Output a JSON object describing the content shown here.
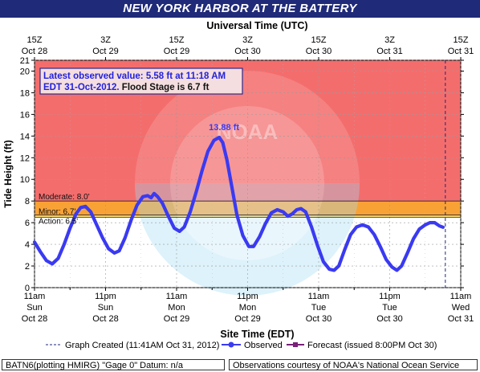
{
  "page": {
    "title": "NEW YORK HARBOR AT THE BATTERY",
    "station_info": "BATN6(plotting HMIRG) \"Gage 0\" Datum: n/a",
    "credit": "Observations courtesy of NOAA's National Ocean Service"
  },
  "colors": {
    "title_bg": "#1f2a78",
    "major": "#f46d6d",
    "moderate": "#f8a236",
    "minor": "#fcdc72",
    "action": "#f5f59a",
    "observed": "#3a3af2",
    "forecast": "#7a1f7a"
  },
  "chart_data": {
    "type": "line",
    "ylabel": "Tide Height (ft)",
    "xlabel": "Site Time (EDT)",
    "top_axis_label": "Universal Time (UTC)",
    "ylim": [
      0,
      21
    ],
    "yticks": [
      0,
      2,
      4,
      6,
      8,
      10,
      12,
      14,
      16,
      18,
      20,
      21
    ],
    "x_range_hours": [
      0,
      72
    ],
    "bottom_ticks": [
      {
        "h": 0,
        "l1": "11am",
        "l2": "Sun",
        "l3": "Oct 28"
      },
      {
        "h": 12,
        "l1": "11pm",
        "l2": "Sun",
        "l3": "Oct 28"
      },
      {
        "h": 24,
        "l1": "11am",
        "l2": "Mon",
        "l3": "Oct 29"
      },
      {
        "h": 36,
        "l1": "11pm",
        "l2": "Mon",
        "l3": "Oct 29"
      },
      {
        "h": 48,
        "l1": "11am",
        "l2": "Tue",
        "l3": "Oct 30"
      },
      {
        "h": 60,
        "l1": "11pm",
        "l2": "Tue",
        "l3": "Oct 30"
      },
      {
        "h": 72,
        "l1": "11am",
        "l2": "Wed",
        "l3": "Oct 31"
      }
    ],
    "top_ticks": [
      {
        "h": 0,
        "l1": "15Z",
        "l2": "Oct 28"
      },
      {
        "h": 12,
        "l1": "3Z",
        "l2": "Oct 29"
      },
      {
        "h": 24,
        "l1": "15Z",
        "l2": "Oct 29"
      },
      {
        "h": 36,
        "l1": "3Z",
        "l2": "Oct 30"
      },
      {
        "h": 48,
        "l1": "15Z",
        "l2": "Oct 30"
      },
      {
        "h": 60,
        "l1": "3Z",
        "l2": "Oct 31"
      },
      {
        "h": 72,
        "l1": "15Z",
        "l2": "Oct 31"
      }
    ],
    "bands": [
      {
        "label": "Moderate:",
        "value_label": "8.0'",
        "from": 8.0,
        "to": 21,
        "color": "#f46d6d"
      },
      {
        "label": "Minor:",
        "value_label": "6.7'",
        "from": 6.7,
        "to": 8.0,
        "color": "#f8a236"
      },
      {
        "label": "Action:",
        "value_label": "6.5'",
        "from": 6.5,
        "to": 6.7,
        "color": "#fcdc72"
      }
    ],
    "stage_lines": [
      {
        "label": "Moderate:",
        "value_label": "8.0'",
        "value": 8.0
      },
      {
        "label": "Minor:",
        "value_label": "6.7'",
        "value": 6.7
      },
      {
        "label": "Action:",
        "value_label": "6.5'",
        "value": 6.5
      }
    ],
    "peak_label": {
      "text": "13.88 ft",
      "h": 31.2,
      "value": 13.88
    },
    "latest_box": {
      "line1": "Latest observed value: 5.58 ft at 11:18 AM",
      "line2_a": "EDT 31-Oct-2012.",
      "line2_b": "Flood Stage is 6.7 ft"
    },
    "series": [
      {
        "name": "Observed",
        "style": "observed",
        "points": [
          [
            0,
            4.2
          ],
          [
            1,
            3.3
          ],
          [
            2,
            2.5
          ],
          [
            3,
            2.2
          ],
          [
            4,
            2.7
          ],
          [
            5,
            4.0
          ],
          [
            6,
            5.5
          ],
          [
            7,
            6.8
          ],
          [
            7.8,
            7.4
          ],
          [
            8.6,
            7.5
          ],
          [
            9.5,
            7.0
          ],
          [
            10.5,
            5.8
          ],
          [
            11.5,
            4.6
          ],
          [
            12.5,
            3.6
          ],
          [
            13.5,
            3.2
          ],
          [
            14.3,
            3.4
          ],
          [
            15.3,
            4.6
          ],
          [
            16.3,
            6.2
          ],
          [
            17.3,
            7.6
          ],
          [
            18.3,
            8.4
          ],
          [
            19.1,
            8.5
          ],
          [
            19.7,
            8.3
          ],
          [
            20.2,
            8.7
          ],
          [
            20.8,
            8.4
          ],
          [
            21.6,
            7.8
          ],
          [
            22.6,
            6.6
          ],
          [
            23.6,
            5.5
          ],
          [
            24.5,
            5.2
          ],
          [
            25.3,
            5.6
          ],
          [
            26.3,
            7.0
          ],
          [
            27.3,
            8.8
          ],
          [
            28.3,
            10.8
          ],
          [
            29.3,
            12.6
          ],
          [
            30.3,
            13.6
          ],
          [
            31.2,
            13.88
          ],
          [
            31.8,
            13.4
          ],
          [
            32.5,
            11.8
          ],
          [
            33.3,
            9.4
          ],
          [
            34.2,
            6.7
          ],
          [
            35.2,
            4.8
          ],
          [
            36.2,
            3.8
          ],
          [
            37,
            3.8
          ],
          [
            38,
            4.7
          ],
          [
            39,
            5.9
          ],
          [
            40,
            6.9
          ],
          [
            41,
            7.2
          ],
          [
            42,
            7.0
          ],
          [
            42.8,
            6.6
          ],
          [
            43.5,
            6.8
          ],
          [
            44.3,
            7.2
          ],
          [
            45,
            7.3
          ],
          [
            45.8,
            7.0
          ],
          [
            46.8,
            5.6
          ],
          [
            47.8,
            3.9
          ],
          [
            48.8,
            2.4
          ],
          [
            49.8,
            1.7
          ],
          [
            50.6,
            1.6
          ],
          [
            51.4,
            2.0
          ],
          [
            52.4,
            3.5
          ],
          [
            53.4,
            4.9
          ],
          [
            54.4,
            5.6
          ],
          [
            55.4,
            5.8
          ],
          [
            56.4,
            5.6
          ],
          [
            57.4,
            4.9
          ],
          [
            58.4,
            3.8
          ],
          [
            59.4,
            2.6
          ],
          [
            60.4,
            1.9
          ],
          [
            61.2,
            1.6
          ],
          [
            62,
            2.0
          ],
          [
            63,
            3.2
          ],
          [
            64,
            4.5
          ],
          [
            65,
            5.4
          ],
          [
            66,
            5.8
          ],
          [
            66.8,
            6.0
          ],
          [
            67.6,
            6.0
          ],
          [
            68.4,
            5.7
          ],
          [
            69,
            5.58
          ]
        ]
      }
    ],
    "legend": [
      {
        "label": "Graph Created (11:41AM Oct 31, 2012)",
        "style": "dashed"
      },
      {
        "label": "Observed",
        "style": "observed"
      },
      {
        "label": "Forecast (issued 8:00PM Oct 30)",
        "style": "forecast"
      }
    ],
    "watermark_text": "NOAA"
  }
}
